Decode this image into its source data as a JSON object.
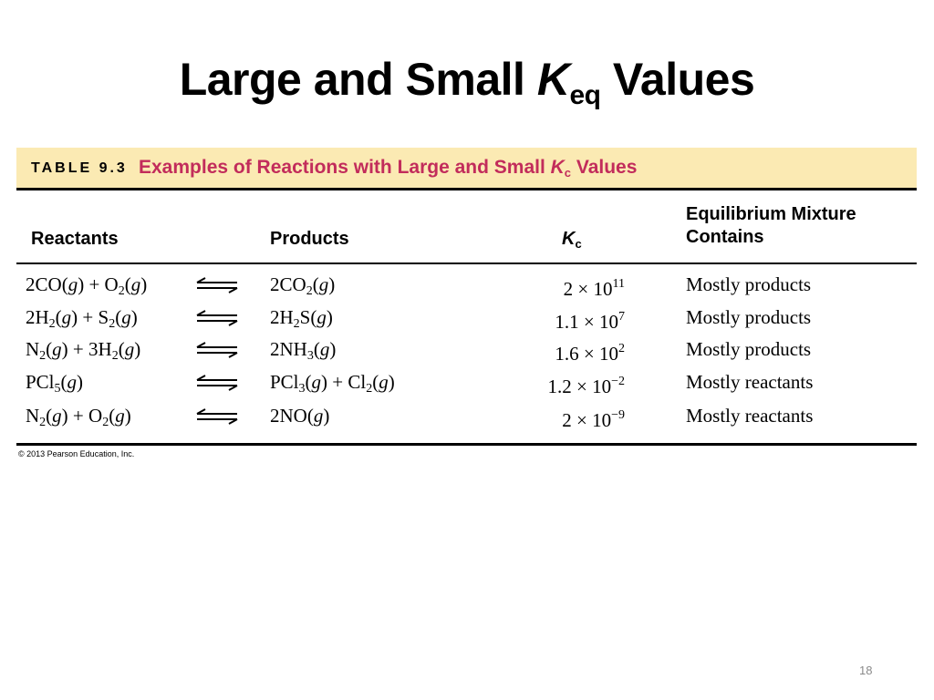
{
  "title": {
    "prefix": "Large and Small ",
    "k": "K",
    "sub": "eq",
    "suffix": " Values"
  },
  "table": {
    "label": "TABLE 9.3",
    "caption_prefix": "Examples of Reactions with Large and Small ",
    "caption_k": "K",
    "caption_sub": "c",
    "caption_suffix": " Values",
    "headers": {
      "reactants": "Reactants",
      "products": "Products",
      "kc_k": "K",
      "kc_sub": "c",
      "mixture_line1": "Equilibrium Mixture",
      "mixture_line2": "Contains"
    },
    "rows": [
      {
        "kc_mant": "2",
        "kc_exp": "11",
        "mixture": "Mostly products"
      },
      {
        "kc_mant": "1.1",
        "kc_exp": "7",
        "mixture": "Mostly products"
      },
      {
        "kc_mant": "1.6",
        "kc_exp": "2",
        "mixture": "Mostly products"
      },
      {
        "kc_mant": "1.2",
        "kc_exp": "−2",
        "mixture": "Mostly reactants"
      },
      {
        "kc_mant": "2",
        "kc_exp": "−9",
        "mixture": "Mostly reactants"
      }
    ],
    "kc_times": "×",
    "kc_base": "10",
    "eq": {
      "r1": {
        "a": "2CO",
        "b": " + O",
        "b_sub": "2",
        "g": "g"
      },
      "p1": {
        "a": "2CO",
        "a_sub": "2",
        "g": "g"
      },
      "r2": {
        "a": "2H",
        "a_sub": "2",
        "b": " + S",
        "b_sub": "2",
        "g": "g"
      },
      "p2": {
        "a": "2H",
        "a_sub": "2",
        "a2": "S",
        "g": "g"
      },
      "r3": {
        "a": "N",
        "a_sub": "2",
        "b": " + 3H",
        "b_sub": "2",
        "g": "g"
      },
      "p3": {
        "a": "2NH",
        "a_sub": "3",
        "g": "g"
      },
      "r4": {
        "a": "PCl",
        "a_sub": "5",
        "g": "g"
      },
      "p4": {
        "a": "PCl",
        "a_sub": "3",
        "b": " + Cl",
        "b_sub": "2",
        "g": "g"
      },
      "r5": {
        "a": "N",
        "a_sub": "2",
        "b": " + O",
        "b_sub": "2",
        "g": "g"
      },
      "p5": {
        "a": "2NO",
        "g": "g"
      }
    }
  },
  "copyright": "© 2013 Pearson Education, Inc.",
  "page_number": "18"
}
